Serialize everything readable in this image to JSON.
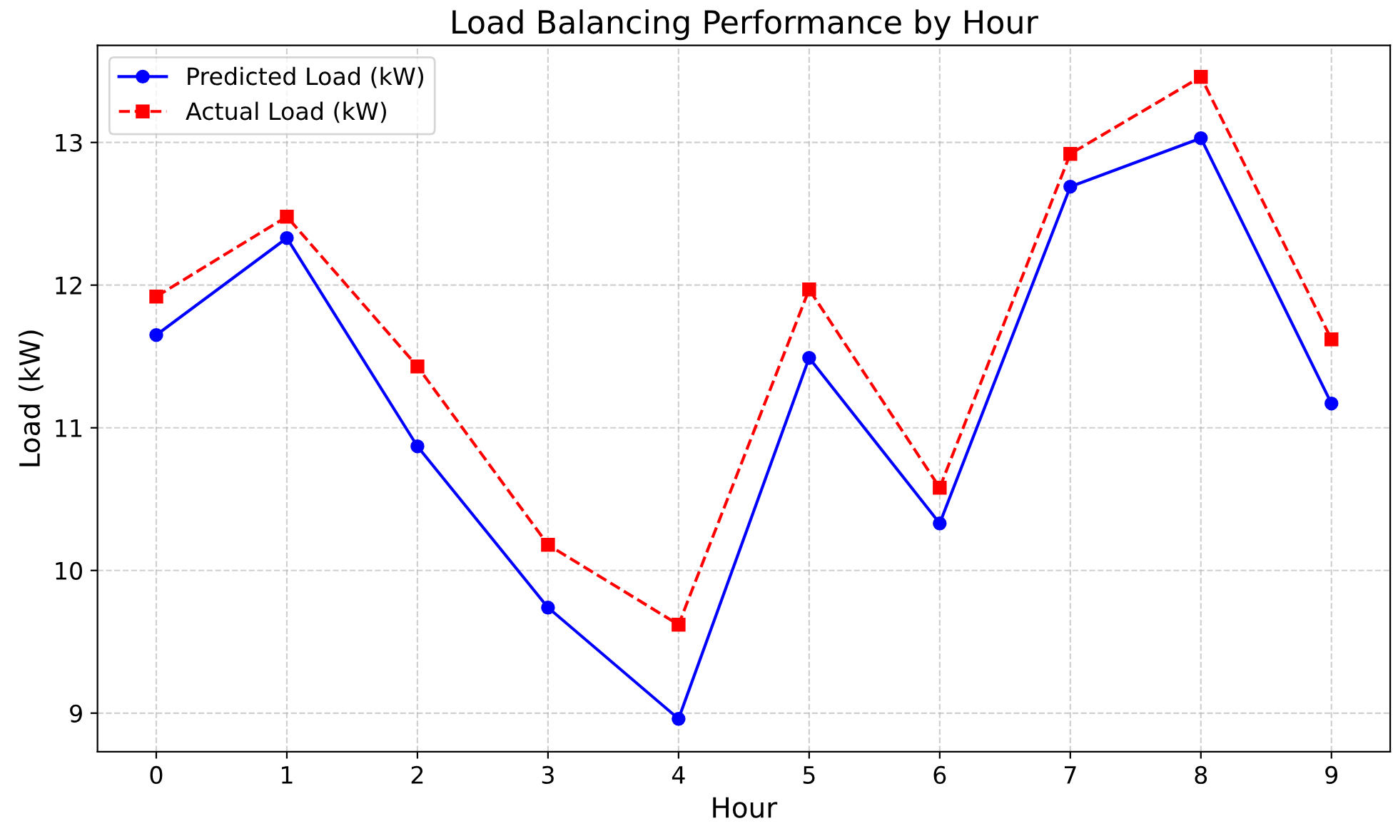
{
  "chart_data": {
    "type": "line",
    "title": "Load Balancing Performance by Hour",
    "xlabel": "Hour",
    "ylabel": "Load (kW)",
    "x": [
      0,
      1,
      2,
      3,
      4,
      5,
      6,
      7,
      8,
      9
    ],
    "series": [
      {
        "name": "Predicted Load (kW)",
        "color": "#0000ff",
        "marker": "circle",
        "line_style": "solid",
        "values": [
          11.65,
          12.33,
          10.87,
          9.74,
          8.96,
          11.49,
          10.33,
          12.69,
          13.03,
          11.17
        ]
      },
      {
        "name": "Actual Load (kW)",
        "color": "#ff0000",
        "marker": "square",
        "line_style": "dashed",
        "values": [
          11.92,
          12.48,
          11.43,
          10.18,
          9.62,
          11.97,
          10.58,
          12.92,
          13.46,
          11.62
        ]
      }
    ],
    "xlim": [
      -0.45,
      9.45
    ],
    "xticks": [
      0,
      1,
      2,
      3,
      4,
      5,
      6,
      7,
      8,
      9
    ],
    "ylim": [
      8.73,
      13.68
    ],
    "yticks": [
      9,
      10,
      11,
      12,
      13
    ],
    "grid": true,
    "legend": "top left"
  }
}
